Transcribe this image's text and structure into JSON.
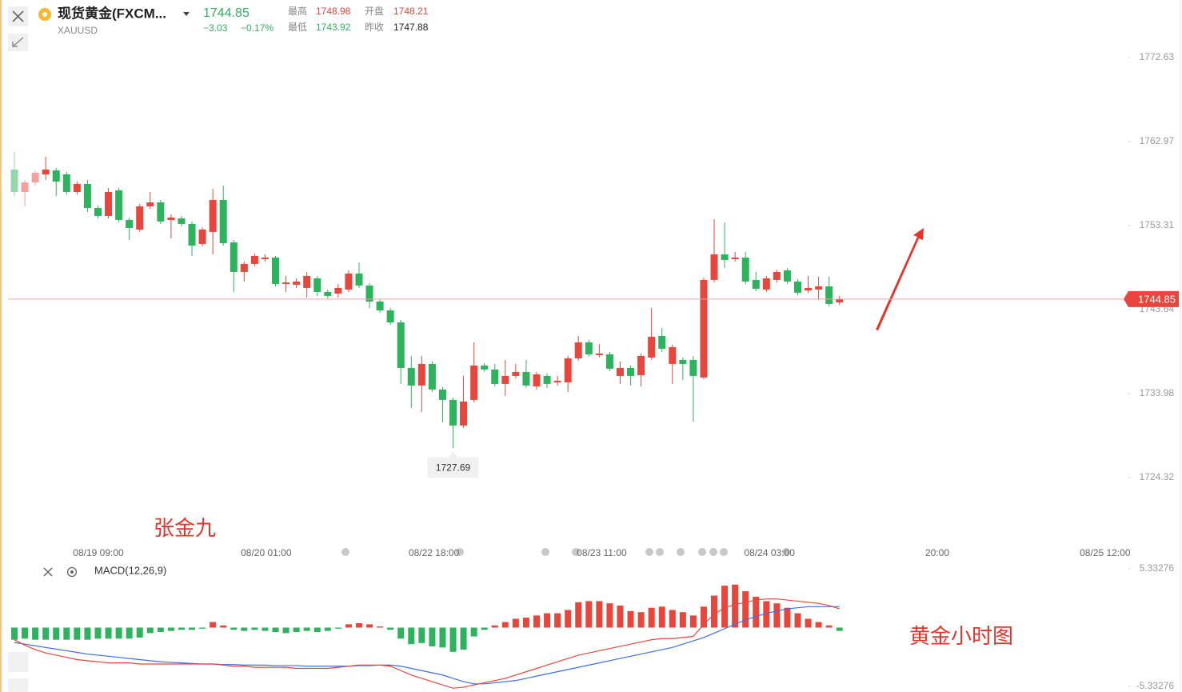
{
  "header": {
    "title": "现货黄金(FXCM...",
    "symbol": "XAUUSD",
    "price": "1744.85",
    "change": "−3.03",
    "change_pct": "−0.17%",
    "high_label": "最高",
    "high": "1748.98",
    "open_label": "开盘",
    "open": "1748.21",
    "low_label": "最低",
    "low": "1743.92",
    "prev_label": "昨收",
    "prev": "1747.88"
  },
  "watermarks": {
    "author": "张金九",
    "caption": "黄金小时图"
  },
  "chart_data": {
    "type": "candlestick",
    "up_color": "#e8463c",
    "down_color": "#2db35d",
    "ylim": [
      1716.68,
      1779.25
    ],
    "yticks": [
      1772.63,
      1762.97,
      1753.31,
      1743.64,
      1733.98,
      1724.32
    ],
    "xlabels": [
      "08/19 09:00",
      "08/20 01:00",
      "08/22 18:00",
      "08/23 11:00",
      "08/24 03:00",
      "20:00",
      "08/25 12:00"
    ],
    "candles": [
      [
        1759.75,
        1761.77,
        1756.71,
        1757.17
      ],
      [
        1757.17,
        1758.55,
        1755.51,
        1758.27
      ],
      [
        1758.27,
        1759.65,
        1757.9,
        1759.38
      ],
      [
        1759.19,
        1761.22,
        1758.55,
        1759.75
      ],
      [
        1759.65,
        1759.93,
        1756.71,
        1758.37
      ],
      [
        1759.19,
        1759.47,
        1756.89,
        1757.17
      ],
      [
        1757.17,
        1758.37,
        1756.89,
        1758.09
      ],
      [
        1758.09,
        1758.55,
        1754.87,
        1755.33
      ],
      [
        1755.33,
        1755.61,
        1754.13,
        1754.41
      ],
      [
        1754.41,
        1757.63,
        1754.13,
        1757.17
      ],
      [
        1757.35,
        1757.63,
        1753.67,
        1753.95
      ],
      [
        1753.95,
        1754.23,
        1751.65,
        1753.03
      ],
      [
        1752.85,
        1755.79,
        1752.57,
        1755.51
      ],
      [
        1755.51,
        1757.17,
        1755.23,
        1755.97
      ],
      [
        1755.97,
        1756.25,
        1753.49,
        1753.77
      ],
      [
        1753.95,
        1754.59,
        1751.83,
        1754.23
      ],
      [
        1754.13,
        1754.41,
        1753.21,
        1753.49
      ],
      [
        1753.49,
        1753.77,
        1749.81,
        1751.01
      ],
      [
        1751.19,
        1753.13,
        1750.91,
        1752.85
      ],
      [
        1752.57,
        1757.54,
        1749.99,
        1756.25
      ],
      [
        1756.25,
        1757.91,
        1751.01,
        1751.28
      ],
      [
        1751.37,
        1751.65,
        1745.67,
        1747.97
      ],
      [
        1747.97,
        1749.17,
        1746.87,
        1748.89
      ],
      [
        1748.89,
        1750.09,
        1748.61,
        1749.81
      ],
      [
        1749.44,
        1749.99,
        1749.17,
        1749.63
      ],
      [
        1749.63,
        1749.81,
        1746.31,
        1746.59
      ],
      [
        1746.59,
        1747.51,
        1745.67,
        1746.77
      ],
      [
        1746.5,
        1747.23,
        1746.13,
        1746.87
      ],
      [
        1746.13,
        1747.97,
        1745.03,
        1747.51
      ],
      [
        1747.23,
        1747.51,
        1745.21,
        1745.67
      ],
      [
        1745.67,
        1745.95,
        1744.93,
        1745.21
      ],
      [
        1745.49,
        1746.59,
        1745.03,
        1746.13
      ],
      [
        1745.95,
        1748.15,
        1745.67,
        1747.79
      ],
      [
        1747.79,
        1749.07,
        1746.13,
        1746.41
      ],
      [
        1746.41,
        1746.68,
        1743.83,
        1744.57
      ],
      [
        1744.57,
        1744.84,
        1743.28,
        1743.55
      ],
      [
        1743.55,
        1743.83,
        1741.9,
        1742.17
      ],
      [
        1742.17,
        1742.45,
        1735.09,
        1736.93
      ],
      [
        1736.93,
        1738.31,
        1732.33,
        1734.91
      ],
      [
        1734.91,
        1738.31,
        1731.87,
        1737.39
      ],
      [
        1737.39,
        1737.67,
        1734.17,
        1734.45
      ],
      [
        1734.45,
        1734.72,
        1730.67,
        1733.25
      ],
      [
        1733.25,
        1733.53,
        1727.69,
        1730.31
      ],
      [
        1730.31,
        1736.01,
        1730.03,
        1733.07
      ],
      [
        1733.25,
        1739.87,
        1732.97,
        1737.21
      ],
      [
        1737.21,
        1737.49,
        1736.47,
        1736.75
      ],
      [
        1736.75,
        1737.39,
        1734.81,
        1735.09
      ],
      [
        1735.09,
        1737.85,
        1733.71,
        1736.01
      ],
      [
        1736.01,
        1737.39,
        1735.73,
        1736.47
      ],
      [
        1736.47,
        1737.85,
        1734.63,
        1734.91
      ],
      [
        1734.81,
        1736.47,
        1734.45,
        1736.19
      ],
      [
        1736.01,
        1736.29,
        1734.63,
        1735.09
      ],
      [
        1735.27,
        1736.01,
        1734.91,
        1735.46
      ],
      [
        1735.27,
        1738.31,
        1734.17,
        1738.03
      ],
      [
        1738.03,
        1740.61,
        1737.76,
        1739.87
      ],
      [
        1739.87,
        1740.15,
        1738.22,
        1738.49
      ],
      [
        1738.4,
        1739.69,
        1738.13,
        1738.59
      ],
      [
        1738.49,
        1738.77,
        1736.56,
        1736.84
      ],
      [
        1736.01,
        1737.67,
        1735.09,
        1736.93
      ],
      [
        1736.93,
        1737.21,
        1734.91,
        1736.01
      ],
      [
        1736.1,
        1738.59,
        1734.81,
        1738.31
      ],
      [
        1738.13,
        1743.83,
        1737.85,
        1740.52
      ],
      [
        1740.61,
        1741.53,
        1738.77,
        1739.14
      ],
      [
        1737.39,
        1739.6,
        1735.09,
        1739.32
      ],
      [
        1737.85,
        1738.13,
        1735.55,
        1737.39
      ],
      [
        1737.85,
        1738.31,
        1730.77,
        1736.01
      ],
      [
        1735.83,
        1747.33,
        1735.64,
        1747.05
      ],
      [
        1747.05,
        1754.04,
        1746.77,
        1749.99
      ],
      [
        1749.99,
        1753.67,
        1748.43,
        1749.35
      ],
      [
        1749.44,
        1750.27,
        1749.17,
        1749.63
      ],
      [
        1749.63,
        1750.27,
        1746.59,
        1746.87
      ],
      [
        1747.05,
        1747.97,
        1745.76,
        1746.04
      ],
      [
        1745.95,
        1747.51,
        1745.67,
        1747.23
      ],
      [
        1747.05,
        1748.24,
        1746.77,
        1747.97
      ],
      [
        1748.15,
        1748.43,
        1746.59,
        1746.87
      ],
      [
        1746.87,
        1747.14,
        1745.3,
        1745.58
      ],
      [
        1745.85,
        1747.51,
        1745.58,
        1746.13
      ],
      [
        1745.95,
        1747.42,
        1744.75,
        1746.31
      ],
      [
        1746.31,
        1747.42,
        1744.01,
        1744.29
      ],
      [
        1744.47,
        1745.21,
        1744.2,
        1744.85
      ]
    ],
    "macd": {
      "label": "MACD(12,26,9)",
      "ylim": [
        -5.33276,
        5.33276
      ],
      "yticks": [
        5.33276,
        -5.33276
      ],
      "dif_color": "#e8463c",
      "dea_color": "#3d6fe0",
      "histogram": [
        -1.1,
        -1.0,
        -1.1,
        -1.1,
        -1.1,
        -1.1,
        -1.1,
        -1.1,
        -1.0,
        -1.0,
        -1.0,
        -1.0,
        -0.9,
        -0.5,
        -0.4,
        -0.3,
        -0.2,
        -0.2,
        -0.1,
        0.5,
        0.2,
        -0.2,
        -0.3,
        -0.2,
        -0.3,
        -0.4,
        -0.5,
        -0.4,
        -0.3,
        -0.4,
        -0.3,
        -0.1,
        0.3,
        0.4,
        0.3,
        0.1,
        -0.2,
        -1.0,
        -1.5,
        -1.4,
        -1.7,
        -1.8,
        -2.2,
        -2.0,
        -0.8,
        -0.2,
        0.2,
        0.5,
        0.8,
        0.9,
        1.1,
        1.3,
        1.3,
        1.6,
        2.3,
        2.4,
        2.4,
        2.2,
        2.0,
        1.5,
        1.4,
        1.8,
        1.9,
        1.6,
        1.4,
        1.1,
        1.9,
        2.9,
        3.8,
        3.9,
        3.3,
        2.8,
        2.4,
        2.2,
        1.8,
        1.3,
        0.8,
        0.5,
        0.2,
        -0.3
      ],
      "dif": [
        -1.1,
        -1.6,
        -2.0,
        -2.3,
        -2.5,
        -2.7,
        -2.9,
        -3.0,
        -3.1,
        -3.2,
        -3.2,
        -3.2,
        -3.3,
        -3.3,
        -3.3,
        -3.3,
        -3.3,
        -3.3,
        -3.3,
        -3.3,
        -3.4,
        -3.5,
        -3.5,
        -3.6,
        -3.6,
        -3.6,
        -3.6,
        -3.7,
        -3.7,
        -3.7,
        -3.7,
        -3.6,
        -3.5,
        -3.4,
        -3.4,
        -3.4,
        -3.5,
        -3.9,
        -4.3,
        -4.6,
        -4.9,
        -5.2,
        -5.5,
        -5.4,
        -5.2,
        -5.0,
        -4.8,
        -4.6,
        -4.3,
        -4.0,
        -3.7,
        -3.4,
        -3.1,
        -2.8,
        -2.5,
        -2.3,
        -2.1,
        -1.9,
        -1.7,
        -1.5,
        -1.3,
        -1.1,
        -1.0,
        -1.0,
        -0.9,
        -0.8,
        0.3,
        1.2,
        1.8,
        2.1,
        2.3,
        2.5,
        2.6,
        2.6,
        2.5,
        2.4,
        2.3,
        2.2,
        2.0,
        1.7
      ],
      "dea": [
        -1.35,
        -1.5,
        -1.65,
        -1.8,
        -1.95,
        -2.1,
        -2.25,
        -2.4,
        -2.5,
        -2.6,
        -2.7,
        -2.8,
        -2.9,
        -3.0,
        -3.1,
        -3.15,
        -3.2,
        -3.25,
        -3.3,
        -3.3,
        -3.35,
        -3.35,
        -3.4,
        -3.4,
        -3.4,
        -3.45,
        -3.45,
        -3.45,
        -3.5,
        -3.5,
        -3.5,
        -3.5,
        -3.5,
        -3.45,
        -3.45,
        -3.4,
        -3.4,
        -3.5,
        -3.7,
        -3.9,
        -4.1,
        -4.3,
        -4.6,
        -4.9,
        -5.1,
        -5.1,
        -5.0,
        -4.9,
        -4.8,
        -4.6,
        -4.4,
        -4.2,
        -4.0,
        -3.8,
        -3.6,
        -3.4,
        -3.2,
        -3.0,
        -2.8,
        -2.6,
        -2.4,
        -2.2,
        -2.0,
        -1.8,
        -1.5,
        -1.2,
        -0.9,
        -0.5,
        -0.1,
        0.3,
        0.7,
        1.0,
        1.3,
        1.5,
        1.7,
        1.8,
        1.9,
        1.9,
        1.9,
        1.9
      ]
    }
  }
}
